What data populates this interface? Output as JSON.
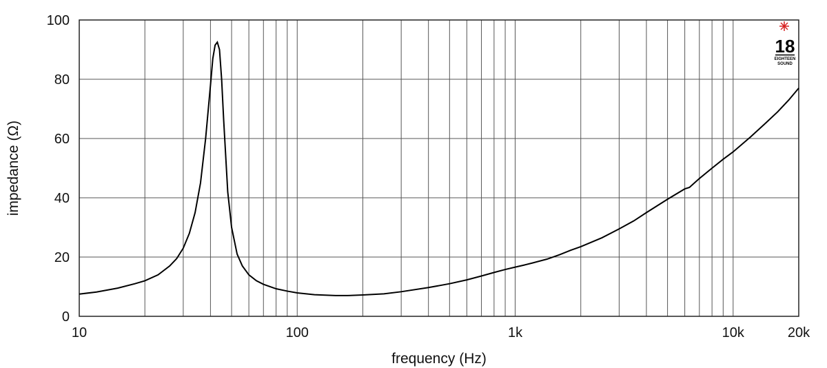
{
  "chart_data": {
    "type": "line",
    "title": "",
    "xlabel": "frequency (Hz)",
    "ylabel": "impedance (Ω)",
    "x_scale": "log",
    "xlim": [
      10,
      20000
    ],
    "ylim": [
      0,
      100
    ],
    "grid": true,
    "x_ticks": [
      {
        "value": 10,
        "label": "10"
      },
      {
        "value": 100,
        "label": "100"
      },
      {
        "value": 1000,
        "label": "1k"
      },
      {
        "value": 10000,
        "label": "10k"
      },
      {
        "value": 20000,
        "label": "20k"
      }
    ],
    "y_ticks": [
      {
        "value": 0,
        "label": "0"
      },
      {
        "value": 20,
        "label": "20"
      },
      {
        "value": 40,
        "label": "40"
      },
      {
        "value": 60,
        "label": "60"
      },
      {
        "value": 80,
        "label": "80"
      },
      {
        "value": 100,
        "label": "100"
      }
    ],
    "series": [
      {
        "color": "#000000",
        "x": [
          10,
          12,
          15,
          18,
          20,
          23,
          26,
          28,
          30,
          32,
          34,
          36,
          38,
          40,
          41,
          42,
          43,
          44,
          45,
          46,
          48,
          50,
          53,
          56,
          60,
          65,
          70,
          80,
          90,
          100,
          120,
          150,
          170,
          200,
          250,
          300,
          400,
          500,
          600,
          700,
          800,
          900,
          1000,
          1100,
          1200,
          1400,
          1600,
          1800,
          2000,
          2500,
          3000,
          3500,
          4000,
          5000,
          6000,
          6300,
          7000,
          8000,
          9000,
          10000,
          12000,
          14000,
          16000,
          18000,
          20000
        ],
        "y": [
          7.5,
          8.2,
          9.5,
          11.0,
          12.0,
          14.0,
          17.0,
          19.5,
          23.0,
          28.0,
          35.0,
          45.0,
          60.0,
          78.0,
          87.0,
          91.5,
          92.5,
          90.0,
          80.0,
          66.0,
          42.0,
          30.0,
          21.0,
          17.0,
          14.0,
          12.0,
          10.8,
          9.3,
          8.5,
          7.9,
          7.3,
          7.0,
          7.0,
          7.2,
          7.6,
          8.3,
          9.7,
          11.0,
          12.3,
          13.6,
          14.8,
          15.8,
          16.6,
          17.3,
          18.0,
          19.3,
          20.8,
          22.3,
          23.5,
          26.5,
          29.5,
          32.2,
          35.0,
          39.5,
          43.0,
          43.5,
          46.5,
          50.0,
          53.0,
          55.5,
          60.5,
          65.0,
          69.0,
          73.0,
          77.0
        ]
      }
    ]
  },
  "logo": {
    "number": "18",
    "line1": "EIGHTEEN",
    "line2": "SOUND",
    "star_color": "#d62020"
  }
}
